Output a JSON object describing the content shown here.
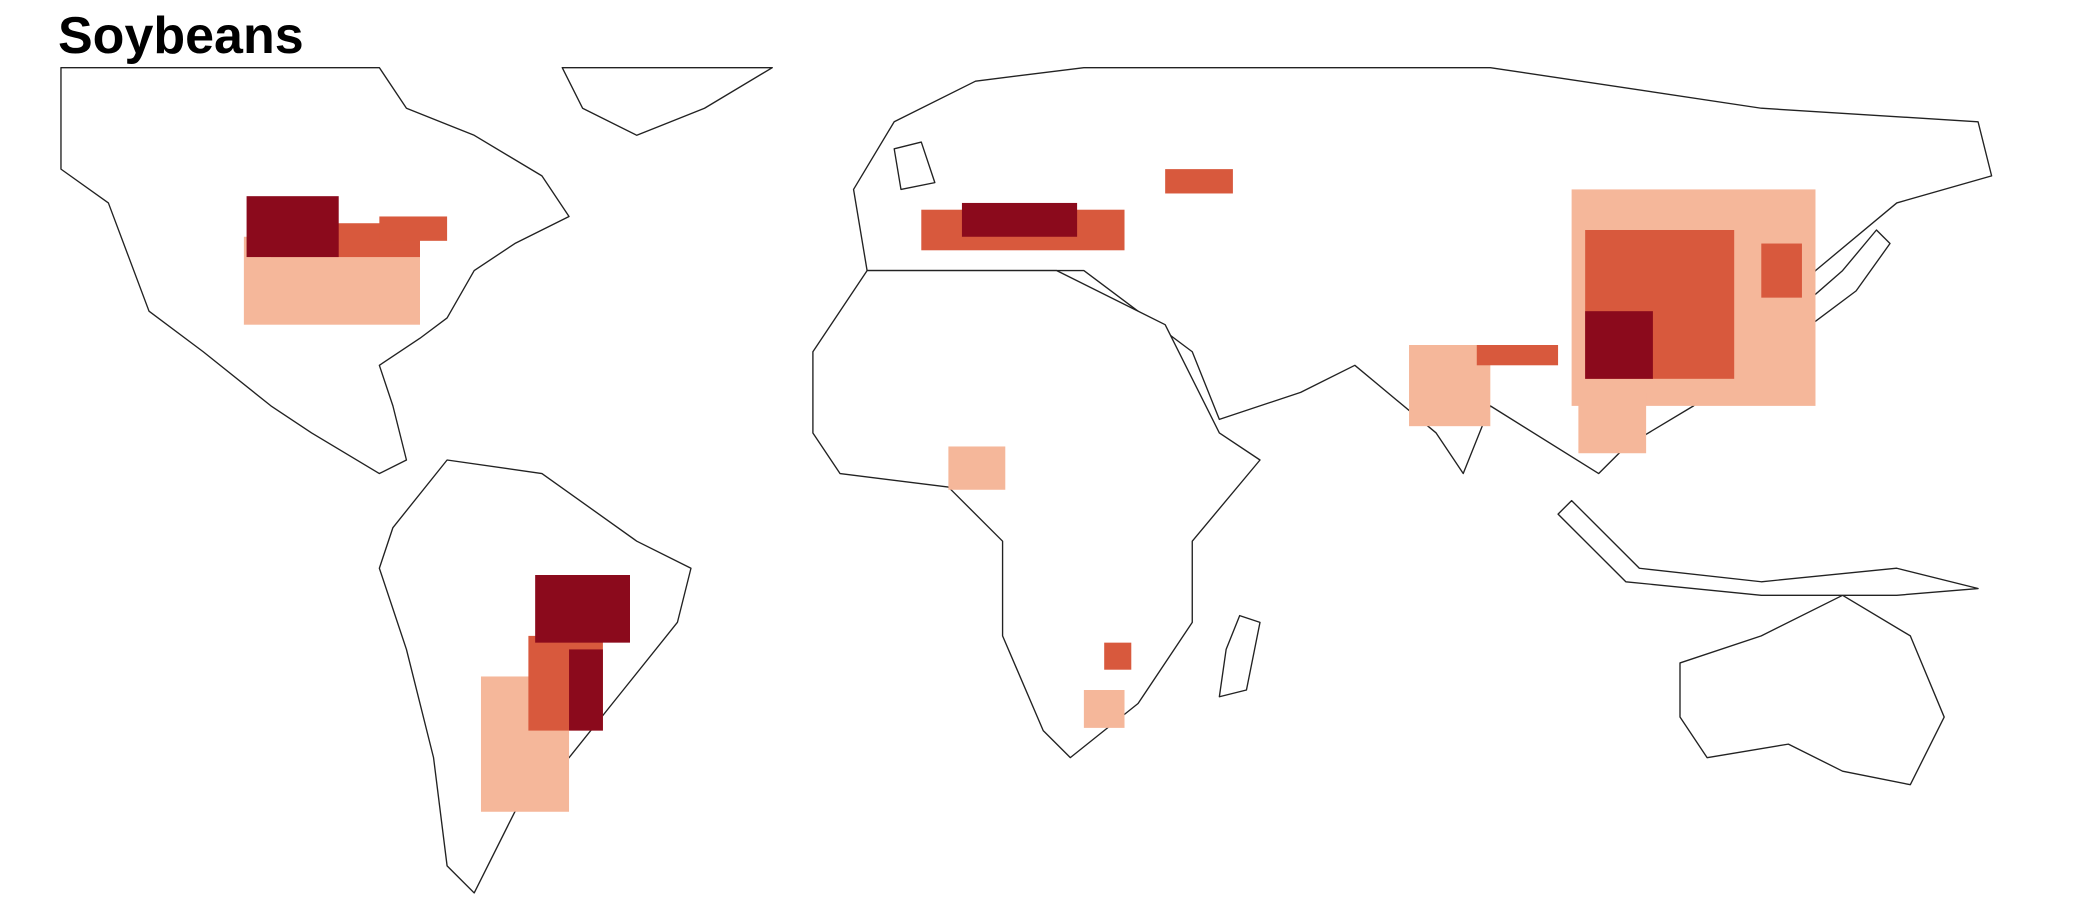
{
  "title": "Soybeans"
}
